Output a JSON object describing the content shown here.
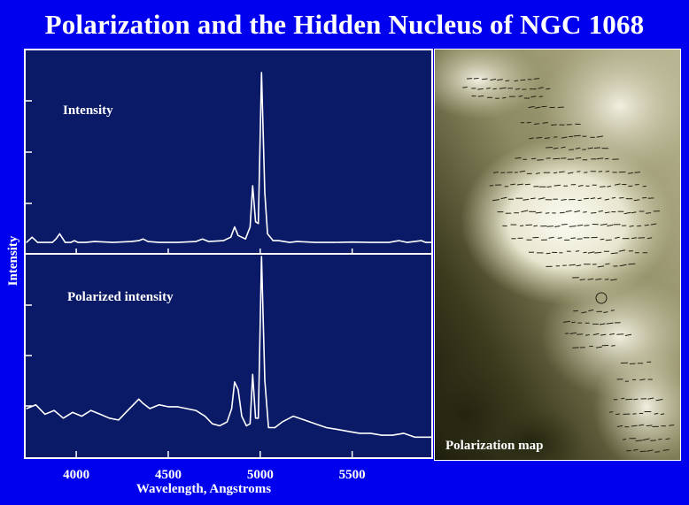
{
  "title": "Polarization and the Hidden Nucleus of NGC 1068",
  "colors": {
    "background": "#0000ee",
    "plot_background": "#0a1a66",
    "frame": "#ffffff",
    "trace": "#ffffff"
  },
  "chart_data": [
    {
      "type": "line",
      "panel_label": "Intensity",
      "xlabel": "Wavelength, Angstroms",
      "ylabel": "Intensity",
      "xlim": [
        3730,
        5930
      ],
      "x_ticks": [
        4000,
        4500,
        5000,
        5500
      ],
      "x_tick_labels": [
        "4000",
        "4500",
        "5000",
        "5500"
      ],
      "ylim": [
        0,
        1
      ],
      "grid": false,
      "series": [
        {
          "x": [
            3730,
            3760,
            3790,
            3830,
            3870,
            3890,
            3910,
            3940,
            3970,
            3990,
            4010,
            4050,
            4100,
            4200,
            4300,
            4340,
            4363,
            4390,
            4450,
            4550,
            4650,
            4686,
            4720,
            4800,
            4840,
            4861,
            4880,
            4920,
            4945,
            4959,
            4975,
            4990,
            5007,
            5025,
            5040,
            5070,
            5100,
            5160,
            5200,
            5300,
            5400,
            5500,
            5600,
            5700,
            5755,
            5800,
            5876,
            5900,
            5930
          ],
          "y": [
            0.01,
            0.04,
            0.01,
            0.01,
            0.01,
            0.03,
            0.06,
            0.01,
            0.01,
            0.02,
            0.01,
            0.01,
            0.015,
            0.01,
            0.015,
            0.02,
            0.03,
            0.015,
            0.01,
            0.01,
            0.015,
            0.03,
            0.015,
            0.02,
            0.04,
            0.1,
            0.05,
            0.03,
            0.1,
            0.34,
            0.13,
            0.12,
            1.0,
            0.3,
            0.06,
            0.02,
            0.02,
            0.01,
            0.015,
            0.01,
            0.01,
            0.012,
            0.01,
            0.01,
            0.02,
            0.01,
            0.02,
            0.01,
            0.01
          ]
        }
      ]
    },
    {
      "type": "line",
      "panel_label": "Polarized intensity",
      "xlabel": "Wavelength, Angstroms",
      "ylabel": "Intensity",
      "xlim": [
        3730,
        5930
      ],
      "x_ticks": [
        4000,
        4500,
        5000,
        5500
      ],
      "x_tick_labels": [
        "4000",
        "4500",
        "5000",
        "5500"
      ],
      "ylim": [
        0,
        1
      ],
      "grid": false,
      "series": [
        {
          "x": [
            3730,
            3780,
            3830,
            3880,
            3930,
            3980,
            4030,
            4080,
            4130,
            4180,
            4230,
            4280,
            4320,
            4340,
            4360,
            4400,
            4450,
            4500,
            4550,
            4600,
            4650,
            4700,
            4740,
            4780,
            4820,
            4845,
            4861,
            4880,
            4900,
            4925,
            4945,
            4959,
            4975,
            4990,
            5007,
            5025,
            5045,
            5080,
            5120,
            5180,
            5240,
            5300,
            5360,
            5420,
            5480,
            5540,
            5600,
            5660,
            5720,
            5780,
            5840,
            5900,
            5930
          ],
          "y": [
            0.2,
            0.22,
            0.17,
            0.19,
            0.15,
            0.18,
            0.16,
            0.19,
            0.17,
            0.15,
            0.14,
            0.19,
            0.23,
            0.25,
            0.23,
            0.2,
            0.22,
            0.21,
            0.21,
            0.2,
            0.19,
            0.16,
            0.12,
            0.11,
            0.13,
            0.2,
            0.34,
            0.3,
            0.16,
            0.11,
            0.12,
            0.38,
            0.15,
            0.15,
            1.0,
            0.35,
            0.1,
            0.1,
            0.13,
            0.16,
            0.14,
            0.12,
            0.1,
            0.09,
            0.08,
            0.07,
            0.07,
            0.06,
            0.06,
            0.07,
            0.05,
            0.05,
            0.05
          ]
        }
      ]
    }
  ],
  "map_panel": {
    "label": "Polarization map"
  }
}
